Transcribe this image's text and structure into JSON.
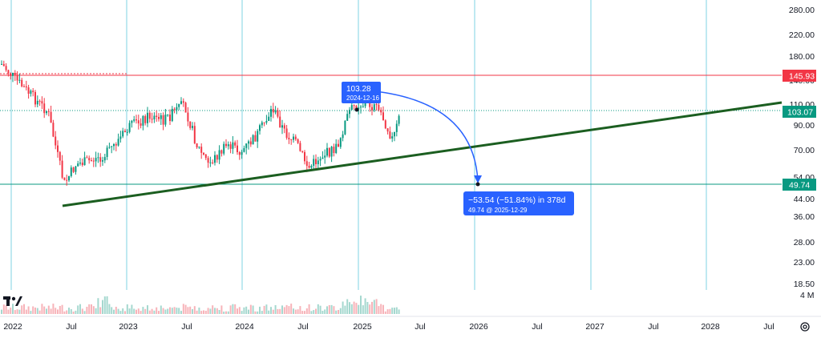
{
  "chart_data": {
    "type": "candlestick",
    "price_axis": {
      "scale": "log",
      "ticks": [
        "280.00",
        "220.00",
        "180.00",
        "140.00",
        "110.00",
        "90.00",
        "70.00",
        "54.00",
        "44.00",
        "36.00",
        "28.00",
        "23.00",
        "18.50"
      ],
      "volume_tick": "4 M"
    },
    "time_axis": {
      "labels": [
        "2022",
        "Jul",
        "2023",
        "Jul",
        "2024",
        "Jul",
        "2025",
        "Jul",
        "2026",
        "Jul",
        "2027",
        "Jul",
        "2028",
        "Jul"
      ]
    },
    "price_labels": {
      "resistance": {
        "value": "145.93",
        "color": "#f23645"
      },
      "last": {
        "value": "103.07",
        "color": "#089981"
      },
      "target": {
        "value": "49.74",
        "color": "#089981"
      }
    },
    "annotations": {
      "start_box": {
        "price": "103.28",
        "date": "2024-12-16",
        "color": "#2962ff"
      },
      "projection_box": {
        "line1": "−53.54 (−51.84%) in 378d",
        "line2": "49.74 @ 2025-12-29",
        "color": "#2962ff"
      },
      "trendline": {
        "color": "#1b5e20"
      }
    },
    "series": [
      {
        "name": "",
        "x": [
          "2022-01",
          "2022-03",
          "2022-05",
          "2022-06",
          "2022-08",
          "2022-10",
          "2022-12",
          "2023-02",
          "2023-04",
          "2023-06",
          "2023-08",
          "2023-10",
          "2023-12",
          "2024-02",
          "2024-04",
          "2024-06",
          "2024-07",
          "2024-09",
          "2024-11",
          "2024-12",
          "2025-02",
          "2025-03",
          "2025-04",
          "2025-05"
        ],
        "y": [
          140,
          118,
          98,
          60,
          58,
          64,
          78,
          92,
          97,
          100,
          65,
          70,
          80,
          97,
          88,
          70,
          60,
          66,
          88,
          110,
          100,
          92,
          75,
          103
        ]
      }
    ],
    "grid": true,
    "legend": "none"
  }
}
